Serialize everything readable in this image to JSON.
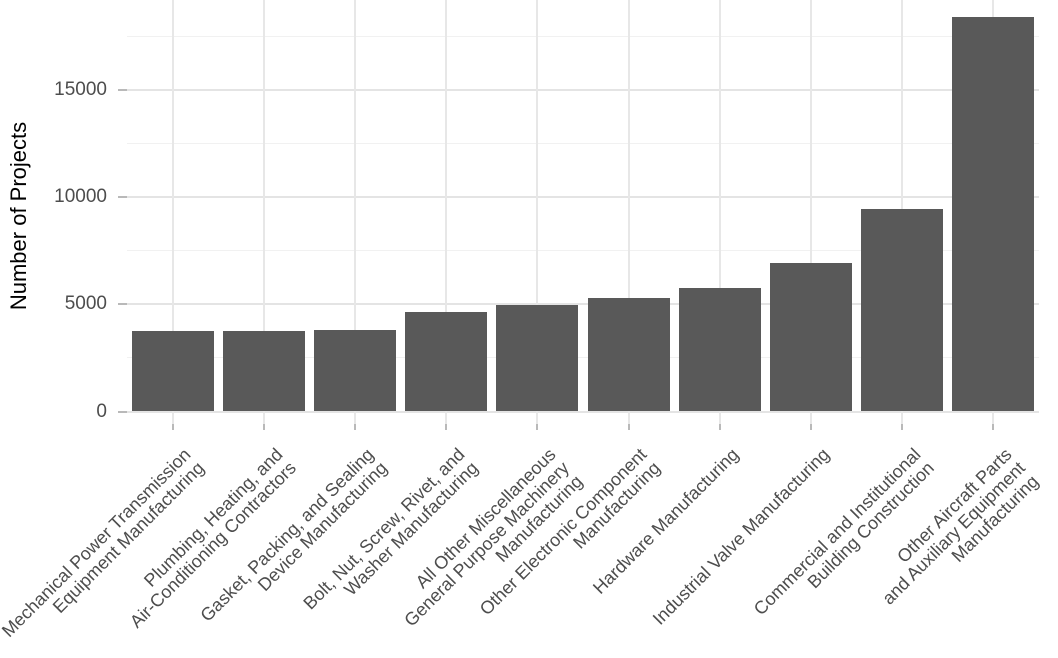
{
  "chart_data": {
    "type": "bar",
    "title": "",
    "xlabel": "",
    "ylabel": "Number of Projects",
    "ylim": [
      0,
      18500
    ],
    "grid": "on",
    "legend": "none",
    "bar_color": "#595959",
    "major_grid_color": "#e4e4e4",
    "minor_grid_color": "#f1f1f1",
    "axis_text_color": "#4d4d4d",
    "yticks": [
      0,
      5000,
      10000,
      15000
    ],
    "ytick_labels": [
      "0",
      "5000",
      "10000",
      "15000"
    ],
    "minor_yticks": [
      2500,
      7500,
      12500,
      17500
    ],
    "categories": [
      "Mechanical Power Transmission Equipment Manufacturing",
      "Plumbing, Heating, and Air-Conditioning Contractors",
      "Gasket, Packing, and Sealing Device Manufacturing",
      "Bolt, Nut, Screw, Rivet, and Washer Manufacturing",
      "All Other Miscellaneous General Purpose Machinery Manufacturing",
      "Other Electronic Component Manufacturing",
      "Hardware Manufacturing",
      "Industrial Valve Manufacturing",
      "Commercial and Institutional Building Construction",
      "Other Aircraft Parts and Auxiliary Equipment Manufacturing"
    ],
    "category_label_lines": [
      [
        "Mechanical Power Transmission",
        "Equipment Manufacturing"
      ],
      [
        "Plumbing, Heating, and",
        "Air-Conditioning Contractors"
      ],
      [
        "Gasket, Packing, and Sealing",
        "Device Manufacturing"
      ],
      [
        "Bolt, Nut, Screw, Rivet, and",
        "Washer Manufacturing"
      ],
      [
        "All Other Miscellaneous",
        "General Purpose Machinery",
        "Manufacturing"
      ],
      [
        "Other Electronic Component",
        "Manufacturing"
      ],
      [
        "Hardware Manufacturing"
      ],
      [
        "Industrial Valve Manufacturing"
      ],
      [
        "Commercial and Institutional",
        "Building Construction"
      ],
      [
        "Other Aircraft Parts",
        "and Auxiliary Equipment",
        "Manufacturing"
      ]
    ],
    "values": [
      3750,
      3760,
      3800,
      4620,
      4960,
      5310,
      5750,
      6940,
      9450,
      18400
    ]
  }
}
